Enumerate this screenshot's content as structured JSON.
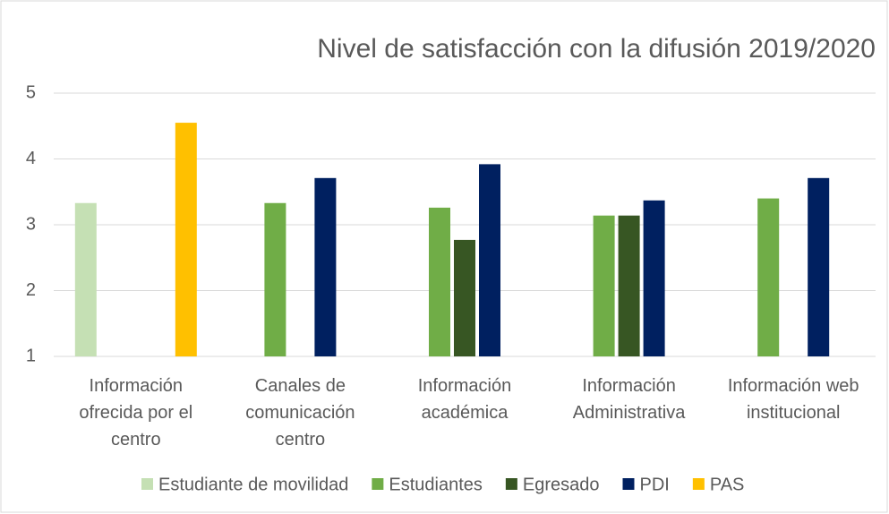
{
  "chart_data": {
    "type": "bar",
    "title": "Nivel de satisfacción con la difusión 2019/2020",
    "categories": [
      "Información ofrecida por el centro",
      "Canales de comunicación centro",
      "Información académica",
      "Información Administrativa",
      "Información web institucional"
    ],
    "series": [
      {
        "name": "Estudiante de movilidad",
        "color": "#c5e0b4",
        "values": [
          3.33,
          null,
          null,
          null,
          null
        ]
      },
      {
        "name": "Estudiantes",
        "color": "#70ad47",
        "values": [
          null,
          3.33,
          3.26,
          3.14,
          3.4
        ]
      },
      {
        "name": "Egresado",
        "color": "#375623",
        "values": [
          null,
          null,
          2.77,
          3.14,
          null
        ]
      },
      {
        "name": "PDI",
        "color": "#002060",
        "values": [
          null,
          3.71,
          3.92,
          3.37,
          3.71
        ]
      },
      {
        "name": "PAS",
        "color": "#ffc000",
        "values": [
          4.55,
          null,
          null,
          null,
          null
        ]
      }
    ],
    "ylim": [
      1,
      5
    ],
    "yticks": [
      1,
      2,
      3,
      4,
      5
    ],
    "grid": true,
    "legend": "bottom"
  }
}
